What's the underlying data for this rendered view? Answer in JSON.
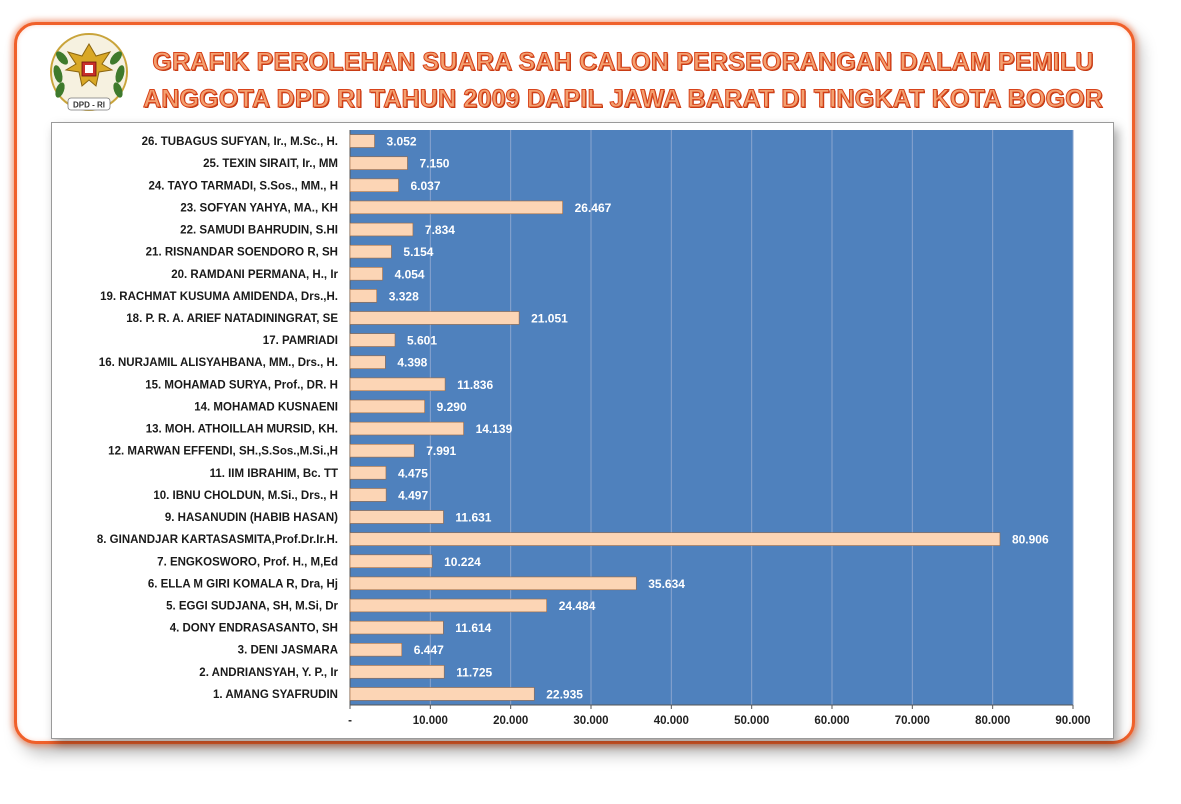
{
  "title": {
    "line1": "GRAFIK PEROLEHAN SUARA SAH CALON PERSEORANGAN DALAM PEMILU",
    "line2": "ANGGOTA DPD RI TAHUN 2009  DAPIL JAWA BARAT  DI TINGKAT  KOTA BOGOR"
  },
  "logo": {
    "text": "DPD - RI",
    "icon": "garuda-emblem"
  },
  "colors": {
    "plot_bg": "#4f81bd",
    "bar_fill": "#fcd5b5",
    "bar_stroke": "#9c6a44",
    "frame": "#f0602a",
    "title": "#f3a070"
  },
  "chart_data": {
    "type": "bar",
    "orientation": "horizontal",
    "categories": [
      "1. AMANG SYAFRUDIN",
      "2. ANDRIANSYAH, Y. P., Ir",
      "3. DENI JASMARA",
      "4. DONY ENDRASASANTO, SH",
      "5. EGGI SUDJANA, SH, M.Si, Dr",
      "6. ELLA M GIRI KOMALA R, Dra, Hj",
      "7. ENGKOSWORO, Prof. H., M,Ed",
      "8. GINANDJAR KARTASASMITA,Prof.Dr.Ir.H.",
      "9. HASANUDIN (HABIB HASAN)",
      "10. IBNU CHOLDUN, M.Si., Drs., H",
      "11. IIM IBRAHIM, Bc. TT",
      "12. MARWAN EFFENDI, SH.,S.Sos.,M.Si.,H",
      "13. MOH. ATHOILLAH MURSID, KH.",
      "14. MOHAMAD KUSNAENI",
      "15. MOHAMAD SURYA, Prof., DR. H",
      "16. NURJAMIL ALISYAHBANA, MM., Drs., H.",
      "17. PAMRIADI",
      "18. P. R. A. ARIEF NATADININGRAT, SE",
      "19. RACHMAT KUSUMA AMIDENDA, Drs.,H.",
      "20. RAMDANI PERMANA, H., Ir",
      "21. RISNANDAR SOENDORO R, SH",
      "22. SAMUDI BAHRUDIN, S.HI",
      "23. SOFYAN YAHYA, MA., KH",
      "24. TAYO TARMADI, S.Sos., MM., H",
      "25. TEXIN SIRAIT, Ir., MM",
      "26. TUBAGUS SUFYAN, Ir., M.Sc., H."
    ],
    "values": [
      22935,
      11725,
      6447,
      11614,
      24484,
      35634,
      10224,
      80906,
      11631,
      4497,
      4475,
      7991,
      14139,
      9290,
      11836,
      4398,
      5601,
      21051,
      3328,
      4054,
      5154,
      7834,
      26467,
      6037,
      7150,
      3052
    ],
    "value_labels": [
      "22.935",
      "11.725",
      "6.447",
      "11.614",
      "24.484",
      "35.634",
      "10.224",
      "80.906",
      "11.631",
      "4.497",
      "4.475",
      "7.991",
      "14.139",
      "9.290",
      "11.836",
      "4.398",
      "5.601",
      "21.051",
      "3.328",
      "4.054",
      "5.154",
      "7.834",
      "26.467",
      "6.037",
      "7.150",
      "3.052"
    ],
    "xlim": [
      0,
      90000
    ],
    "x_ticks": [
      0,
      10000,
      20000,
      30000,
      40000,
      50000,
      60000,
      70000,
      80000,
      90000
    ],
    "x_tick_labels": [
      "-",
      "10.000",
      "20.000",
      "30.000",
      "40.000",
      "50.000",
      "60.000",
      "70.000",
      "80.000",
      "90.000"
    ],
    "grid": "vertical",
    "legend": "none"
  }
}
